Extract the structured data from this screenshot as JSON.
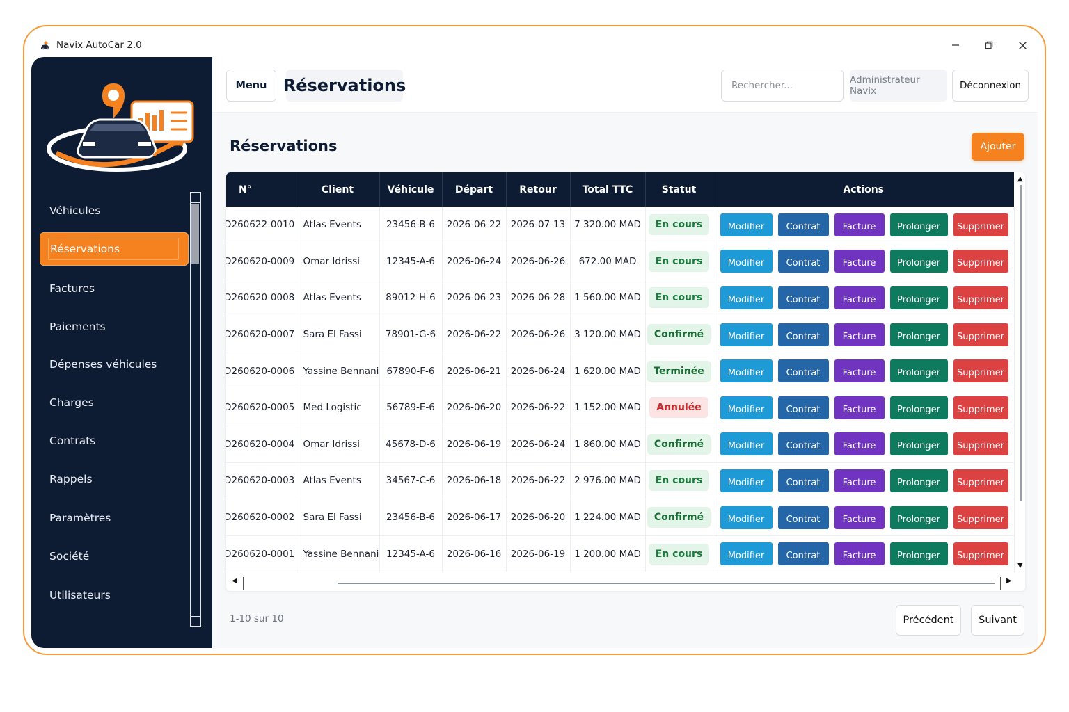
{
  "window": {
    "title": "Navix AutoCar 2.0"
  },
  "sidebar": {
    "items": [
      {
        "label": "Véhicules",
        "active": false
      },
      {
        "label": "Réservations",
        "active": true
      },
      {
        "label": "Factures",
        "active": false
      },
      {
        "label": "Paiements",
        "active": false
      },
      {
        "label": "Dépenses véhicules",
        "active": false
      },
      {
        "label": "Charges",
        "active": false
      },
      {
        "label": "Contrats",
        "active": false
      },
      {
        "label": "Rappels",
        "active": false
      },
      {
        "label": "Paramètres",
        "active": false
      },
      {
        "label": "Société",
        "active": false
      },
      {
        "label": "Utilisateurs",
        "active": false
      }
    ]
  },
  "header": {
    "menu_label": "Menu",
    "page_title": "Réservations",
    "search_placeholder": "Rechercher...",
    "user_label": "Administrateur Navix",
    "logout_label": "Déconnexion"
  },
  "content": {
    "title": "Réservations",
    "add_label": "Ajouter"
  },
  "table": {
    "columns": [
      "N°",
      "Client",
      "Véhicule",
      "Départ",
      "Retour",
      "Total TTC",
      "Statut",
      "Actions"
    ],
    "action_labels": {
      "modify": "Modifier",
      "contract": "Contrat",
      "invoice": "Facture",
      "extend": "Prolonger",
      "delete": "Supprimer"
    },
    "rows": [
      {
        "num": "Ɔ260622-0010",
        "client": "Atlas Events",
        "vehicle": "23456-B-6",
        "start": "2026-06-22",
        "end": "2026-07-13",
        "total": "7 320.00 MAD",
        "status": "En cours",
        "status_kind": "ongoing"
      },
      {
        "num": "Ɔ260620-0009",
        "client": "Omar Idrissi",
        "vehicle": "12345-A-6",
        "start": "2026-06-24",
        "end": "2026-06-26",
        "total": "672.00 MAD",
        "status": "En cours",
        "status_kind": "ongoing"
      },
      {
        "num": "Ɔ260620-0008",
        "client": "Atlas Events",
        "vehicle": "89012-H-6",
        "start": "2026-06-23",
        "end": "2026-06-28",
        "total": "1 560.00 MAD",
        "status": "En cours",
        "status_kind": "ongoing"
      },
      {
        "num": "Ɔ260620-0007",
        "client": "Sara El Fassi",
        "vehicle": "78901-G-6",
        "start": "2026-06-22",
        "end": "2026-06-26",
        "total": "3 120.00 MAD",
        "status": "Confirmé",
        "status_kind": "confirmed"
      },
      {
        "num": "Ɔ260620-0006",
        "client": "Yassine Bennani",
        "vehicle": "67890-F-6",
        "start": "2026-06-21",
        "end": "2026-06-24",
        "total": "1 620.00 MAD",
        "status": "Terminée",
        "status_kind": "done"
      },
      {
        "num": "Ɔ260620-0005",
        "client": "Med Logistic",
        "vehicle": "56789-E-6",
        "start": "2026-06-20",
        "end": "2026-06-22",
        "total": "1 152.00 MAD",
        "status": "Annulée",
        "status_kind": "cancelled"
      },
      {
        "num": "Ɔ260620-0004",
        "client": "Omar Idrissi",
        "vehicle": "45678-D-6",
        "start": "2026-06-19",
        "end": "2026-06-24",
        "total": "1 860.00 MAD",
        "status": "Confirmé",
        "status_kind": "confirmed"
      },
      {
        "num": "Ɔ260620-0003",
        "client": "Atlas Events",
        "vehicle": "34567-C-6",
        "start": "2026-06-18",
        "end": "2026-06-22",
        "total": "2 976.00 MAD",
        "status": "En cours",
        "status_kind": "ongoing"
      },
      {
        "num": "Ɔ260620-0002",
        "client": "Sara El Fassi",
        "vehicle": "23456-B-6",
        "start": "2026-06-17",
        "end": "2026-06-20",
        "total": "1 224.00 MAD",
        "status": "Confirmé",
        "status_kind": "confirmed"
      },
      {
        "num": "Ɔ260620-0001",
        "client": "Yassine Bennani",
        "vehicle": "12345-A-6",
        "start": "2026-06-16",
        "end": "2026-06-19",
        "total": "1 200.00 MAD",
        "status": "En cours",
        "status_kind": "ongoing"
      }
    ]
  },
  "status_colors": {
    "ongoing": {
      "bg": "#e3f5e8",
      "fg": "#1a7a3c"
    },
    "confirmed": {
      "bg": "#e3f5e8",
      "fg": "#1a6b35"
    },
    "done": {
      "bg": "#e3f5e8",
      "fg": "#1a6b35"
    },
    "cancelled": {
      "bg": "#fde4e4",
      "fg": "#c42b2b"
    }
  },
  "pagination": {
    "info": "1-10 sur 10",
    "prev_label": "Précédent",
    "next_label": "Suivant"
  },
  "colors": {
    "accent": "#f5821f",
    "navy": "#0d1b33"
  }
}
